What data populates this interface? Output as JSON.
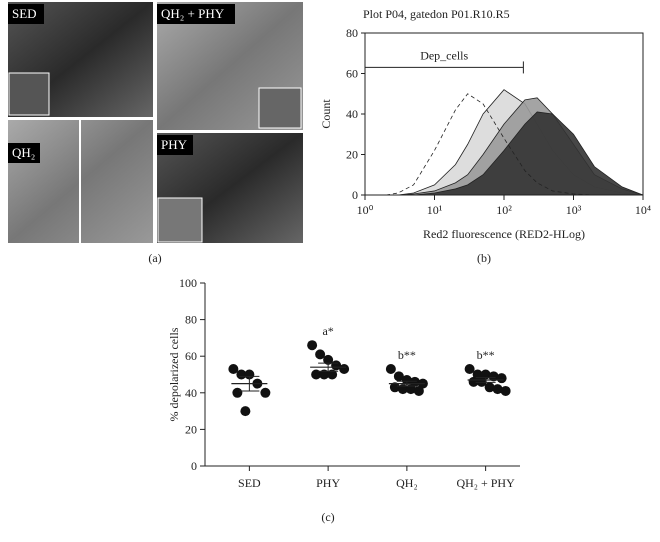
{
  "panel_a": {
    "panel_label": "(a)",
    "images": [
      {
        "label": "SED"
      },
      {
        "label": "QH₂ + PHY"
      },
      {
        "label": "QH₂"
      },
      {
        "label": "PHY"
      }
    ]
  },
  "chart_data": [
    {
      "type": "line",
      "title": "Plot P04, gatedon P01.R10.R5",
      "y_label": "Count",
      "x_label": "Red2 fluorescence (RED2-HLog)",
      "panel_label": "(b)",
      "log_x": true,
      "xlim": [
        1,
        10000
      ],
      "xticks": [
        {
          "value": 1,
          "label": "10⁰"
        },
        {
          "value": 10,
          "label": "10¹"
        },
        {
          "value": 100,
          "label": "10²"
        },
        {
          "value": 1000,
          "label": "10³"
        },
        {
          "value": 10000,
          "label": "10⁴"
        }
      ],
      "ylim": [
        0,
        80
      ],
      "yticks": [
        0,
        20,
        40,
        60,
        80
      ],
      "gate": {
        "label": "Dep_cells",
        "x": [
          1,
          190
        ],
        "y": 63
      },
      "x": [
        1,
        2,
        3,
        5,
        10,
        20,
        30,
        50,
        100,
        200,
        300,
        500,
        1000,
        2000,
        5000,
        10000
      ],
      "series": [
        {
          "color": "#d9d9d9",
          "style": "solid",
          "values": [
            0,
            0,
            0,
            1,
            5,
            15,
            25,
            40,
            52,
            45,
            35,
            22,
            10,
            4,
            1,
            0
          ]
        },
        {
          "color": "#9a9a9a",
          "style": "solid",
          "values": [
            0,
            0,
            0,
            0.5,
            2,
            6,
            10,
            20,
            35,
            47,
            48,
            40,
            25,
            10,
            3,
            0
          ]
        },
        {
          "color": "#333333",
          "style": "solid",
          "values": [
            0,
            0,
            0,
            0,
            1,
            3,
            5,
            10,
            22,
            35,
            41,
            40,
            30,
            14,
            4,
            0
          ]
        },
        {
          "color": "none",
          "style": "dashed",
          "values": [
            0,
            0,
            1,
            5,
            22,
            42,
            50,
            45,
            28,
            12,
            6,
            2,
            0.5,
            0,
            0,
            0
          ]
        }
      ]
    },
    {
      "type": "dot",
      "y_label": "% depolarized cells",
      "panel_label": "(c)",
      "categories": [
        "SED",
        "PHY",
        "QH₂",
        "QH₂ + PHY"
      ],
      "annotations": [
        null,
        "a*",
        "b**",
        "b**"
      ],
      "ylim": [
        0,
        100
      ],
      "yticks": [
        0,
        20,
        40,
        60,
        80,
        100
      ],
      "color": "#111111",
      "values": [
        [
          53,
          50,
          50,
          45,
          40,
          40,
          30
        ],
        [
          66,
          61,
          58,
          55,
          53,
          50,
          50,
          50
        ],
        [
          53,
          49,
          47,
          46,
          45,
          43,
          42,
          42,
          41
        ],
        [
          53,
          50,
          50,
          49,
          48,
          46,
          46,
          43,
          42,
          41
        ]
      ],
      "means": [
        45,
        54,
        45,
        47
      ],
      "sem": [
        4,
        2.2,
        1.3,
        1.3
      ]
    }
  ]
}
